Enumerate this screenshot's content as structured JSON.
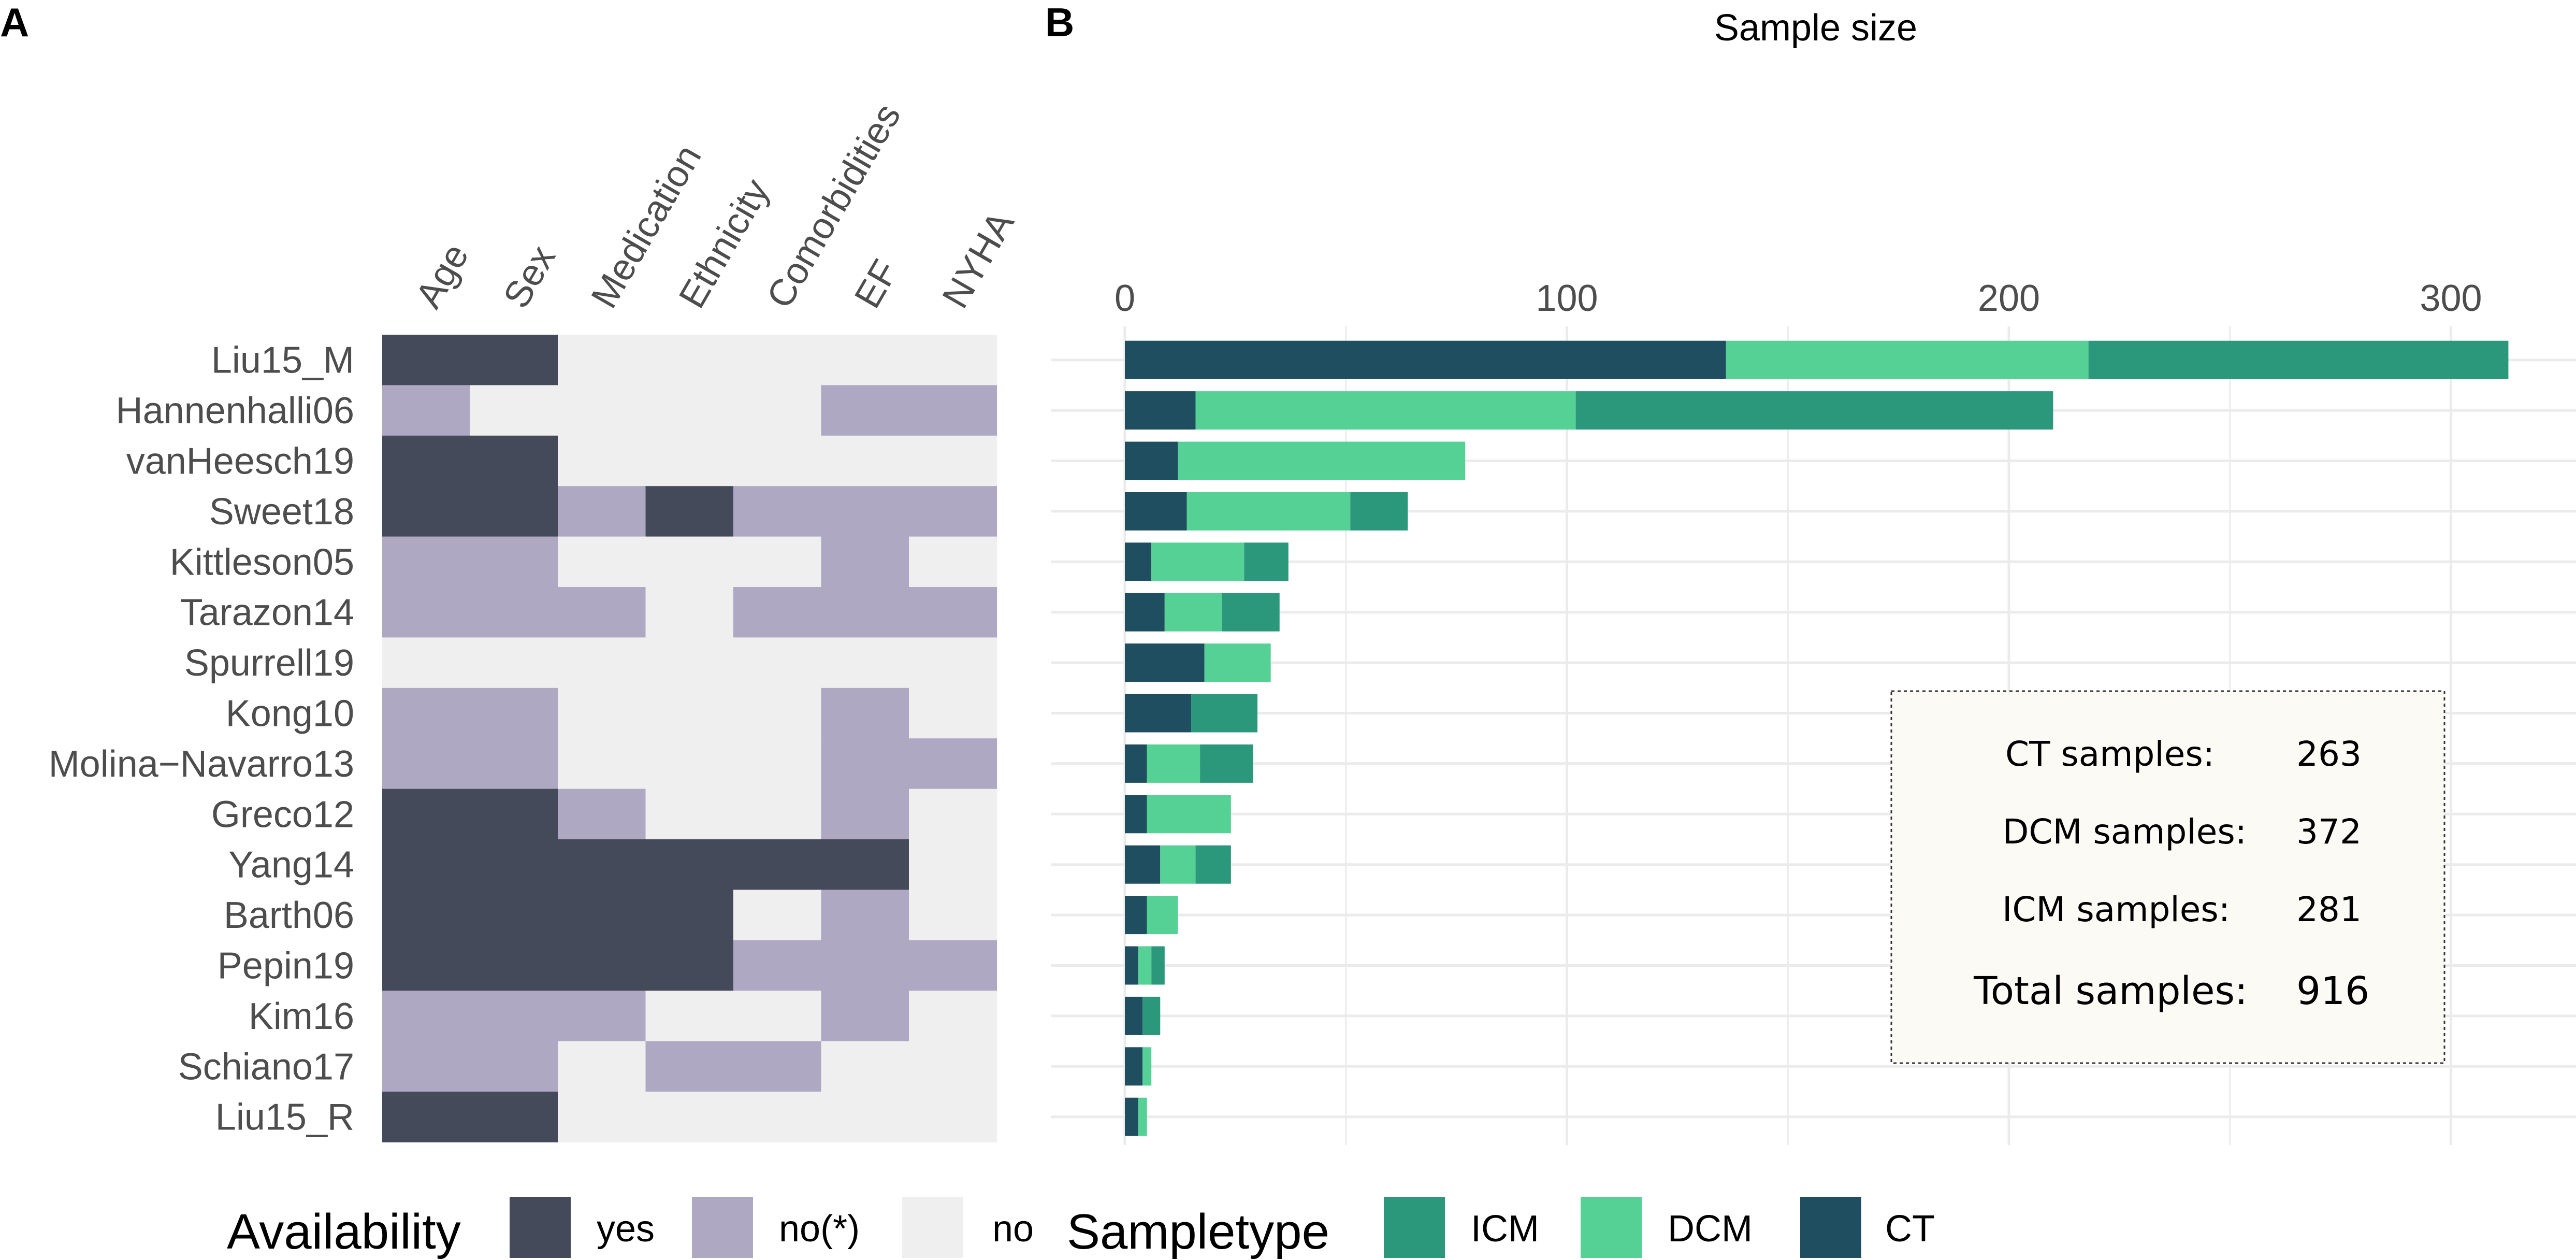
{
  "panels": {
    "a_label": "A",
    "b_label": "B"
  },
  "colors": {
    "yes": "#454a5a",
    "no_star": "#aea8c3",
    "no": "#efefef",
    "ICM": "#2b977b",
    "DCM": "#56d196",
    "CT": "#1f4e60",
    "grid": "#ebebeb",
    "summary_bg": "#fbfaf5"
  },
  "chart_data": [
    {
      "type": "heatmap",
      "columns": [
        "Age",
        "Sex",
        "Medication",
        "Ethnicity",
        "Comorbidities",
        "EF",
        "NYHA"
      ],
      "rows": [
        "Liu15_M",
        "Hannenhalli06",
        "vanHeesch19",
        "Sweet18",
        "Kittleson05",
        "Tarazon14",
        "Spurrell19",
        "Kong10",
        "Molina−Navarro13",
        "Greco12",
        "Yang14",
        "Barth06",
        "Pepin19",
        "Kim16",
        "Schiano17",
        "Liu15_R"
      ],
      "values": [
        [
          "yes",
          "yes",
          "no",
          "no",
          "no",
          "no",
          "no"
        ],
        [
          "no(*)",
          "no",
          "no",
          "no",
          "no",
          "no(*)",
          "no(*)"
        ],
        [
          "yes",
          "yes",
          "no",
          "no",
          "no",
          "no",
          "no"
        ],
        [
          "yes",
          "yes",
          "no(*)",
          "yes",
          "no(*)",
          "no(*)",
          "no(*)"
        ],
        [
          "no(*)",
          "no(*)",
          "no",
          "no",
          "no",
          "no(*)",
          "no"
        ],
        [
          "no(*)",
          "no(*)",
          "no(*)",
          "no",
          "no(*)",
          "no(*)",
          "no(*)"
        ],
        [
          "no",
          "no",
          "no",
          "no",
          "no",
          "no",
          "no"
        ],
        [
          "no(*)",
          "no(*)",
          "no",
          "no",
          "no",
          "no(*)",
          "no"
        ],
        [
          "no(*)",
          "no(*)",
          "no",
          "no",
          "no",
          "no(*)",
          "no(*)"
        ],
        [
          "yes",
          "yes",
          "no(*)",
          "no",
          "no",
          "no(*)",
          "no"
        ],
        [
          "yes",
          "yes",
          "yes",
          "yes",
          "yes",
          "yes",
          "no"
        ],
        [
          "yes",
          "yes",
          "yes",
          "yes",
          "no",
          "no(*)",
          "no"
        ],
        [
          "yes",
          "yes",
          "yes",
          "yes",
          "no(*)",
          "no(*)",
          "no(*)"
        ],
        [
          "no(*)",
          "no(*)",
          "no(*)",
          "no",
          "no",
          "no(*)",
          "no"
        ],
        [
          "no(*)",
          "no(*)",
          "no",
          "no(*)",
          "no(*)",
          "no",
          "no"
        ],
        [
          "yes",
          "yes",
          "no",
          "no",
          "no",
          "no",
          "no"
        ]
      ],
      "legend": {
        "title": "Availability",
        "items": [
          "yes",
          "no(*)",
          "no"
        ]
      }
    },
    {
      "type": "bar",
      "orientation": "horizontal",
      "stacked": true,
      "title": "Sample size",
      "xlim": [
        0,
        320
      ],
      "ticks": [
        0,
        100,
        200,
        300
      ],
      "categories": [
        "Liu15_M",
        "Hannenhalli06",
        "vanHeesch19",
        "Sweet18",
        "Kittleson05",
        "Tarazon14",
        "Spurrell19",
        "Kong10",
        "Molina−Navarro13",
        "Greco12",
        "Yang14",
        "Barth06",
        "Pepin19",
        "Kim16",
        "Schiano17",
        "Liu15_R"
      ],
      "series": [
        {
          "name": "CT",
          "values": [
            136,
            16,
            12,
            14,
            6,
            9,
            18,
            15,
            5,
            5,
            8,
            5,
            3,
            4,
            4,
            3
          ]
        },
        {
          "name": "DCM",
          "values": [
            82,
            86,
            65,
            37,
            21,
            13,
            15,
            0,
            12,
            19,
            8,
            7,
            3,
            0,
            2,
            2
          ]
        },
        {
          "name": "ICM",
          "values": [
            95,
            108,
            0,
            13,
            10,
            13,
            0,
            15,
            12,
            0,
            8,
            0,
            3,
            4,
            0,
            0
          ]
        }
      ],
      "legend": {
        "title": "Sampletype",
        "items": [
          "ICM",
          "DCM",
          "CT"
        ]
      },
      "summary": [
        {
          "label": "CT samples:",
          "value": "263"
        },
        {
          "label": "DCM samples:",
          "value": "372"
        },
        {
          "label": "ICM samples:",
          "value": "281"
        },
        {
          "label": "Total samples:",
          "value": "916"
        }
      ]
    }
  ]
}
